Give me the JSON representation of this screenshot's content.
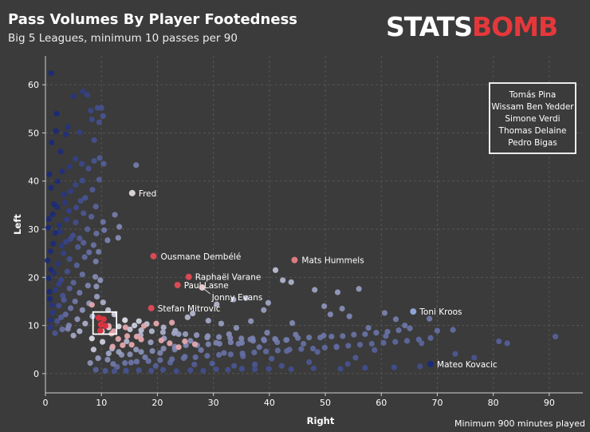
{
  "header": {
    "title": "Pass Volumes By Player Footedness",
    "subtitle": "Big 5 Leagues, minimum 10 passes per 90"
  },
  "logo": {
    "part1": "STATS",
    "part2": "BOMB"
  },
  "footnote": "Minimum 900 minutes played",
  "colors": {
    "background": "#3b3b3b",
    "high_left": "#1b2a78",
    "mid": "#e8e8f0",
    "high_right_balance": "#d9343f"
  },
  "chart_data": {
    "type": "scatter",
    "xlabel": "Right",
    "ylabel": "Left",
    "xlim": [
      0,
      96
    ],
    "ylim": [
      -4,
      66
    ],
    "xticks": [
      0,
      10,
      20,
      30,
      40,
      50,
      60,
      70,
      80,
      90
    ],
    "yticks": [
      0,
      10,
      20,
      30,
      40,
      50,
      60
    ],
    "grid": true,
    "highlight_box": {
      "x": [
        8.5,
        12.7
      ],
      "y": [
        8.2,
        12.8
      ]
    },
    "highlight_names": [
      "Tomás Pina",
      "Wissam Ben Yedder",
      "Simone Verdi",
      "Thomas Delaine",
      "Pedro Bigas"
    ],
    "labeled_points": [
      {
        "name": "Fred",
        "x": 15.5,
        "y": 37.5,
        "color": "#d9d2d4"
      },
      {
        "name": "Ousmane Dembélé",
        "x": 19.3,
        "y": 24.4,
        "color": "#d94a55"
      },
      {
        "name": "Raphaël Varane",
        "x": 25.6,
        "y": 20.1,
        "color": "#d94a55"
      },
      {
        "name": "Paul Lasne",
        "x": 23.6,
        "y": 18.4,
        "color": "#d94a55"
      },
      {
        "name": "Jonny Evans",
        "x": 28.0,
        "y": 17.9,
        "color": "#e7c9cc"
      },
      {
        "name": "Stefan Mitrovic",
        "x": 18.9,
        "y": 13.6,
        "color": "#d94a55"
      },
      {
        "name": "Mats Hummels",
        "x": 44.5,
        "y": 23.6,
        "color": "#e07a82"
      },
      {
        "name": "Toni Kroos",
        "x": 65.7,
        "y": 12.9,
        "color": "#8fa3d6"
      },
      {
        "name": "Mateo Kovacic",
        "x": 68.8,
        "y": 2.0,
        "color": "#1b2a78"
      }
    ],
    "points": [
      [
        1.0,
        62.4
      ],
      [
        6.7,
        58.6
      ],
      [
        7.5,
        57.9
      ],
      [
        5.0,
        57.6
      ],
      [
        10.0,
        55.2
      ],
      [
        9.3,
        55.2
      ],
      [
        8.1,
        54.6
      ],
      [
        2.0,
        54.0
      ],
      [
        10.3,
        53.5
      ],
      [
        8.3,
        52.8
      ],
      [
        9.6,
        52.2
      ],
      [
        4.0,
        51.2
      ],
      [
        6.1,
        50.1
      ],
      [
        1.9,
        50.4
      ],
      [
        3.7,
        49.7
      ],
      [
        1.1,
        48.0
      ],
      [
        8.7,
        48.5
      ],
      [
        2.7,
        46.1
      ],
      [
        5.4,
        44.6
      ],
      [
        9.7,
        44.8
      ],
      [
        8.7,
        44.2
      ],
      [
        6.5,
        43.6
      ],
      [
        10.4,
        43.6
      ],
      [
        4.3,
        43.0
      ],
      [
        7.7,
        42.6
      ],
      [
        3.0,
        42.0
      ],
      [
        0.7,
        41.4
      ],
      [
        9.6,
        40.3
      ],
      [
        6.6,
        40.1
      ],
      [
        2.2,
        39.9
      ],
      [
        5.4,
        39.2
      ],
      [
        1.0,
        38.6
      ],
      [
        8.4,
        38.2
      ],
      [
        4.5,
        37.9
      ],
      [
        3.3,
        37.2
      ],
      [
        7.1,
        36.5
      ],
      [
        6.3,
        35.9
      ],
      [
        9.0,
        34.7
      ],
      [
        2.1,
        34.6
      ],
      [
        4.2,
        33.8
      ],
      [
        6.8,
        33.3
      ],
      [
        1.3,
        33.1
      ],
      [
        8.2,
        32.6
      ],
      [
        3.8,
        32.0
      ],
      [
        5.4,
        31.4
      ],
      [
        10.3,
        31.5
      ],
      [
        0.5,
        30.3
      ],
      [
        7.5,
        30.0
      ],
      [
        2.6,
        29.5
      ],
      [
        9.1,
        29.1
      ],
      [
        4.9,
        28.7
      ],
      [
        6.1,
        28.1
      ],
      [
        3.7,
        27.4
      ],
      [
        1.4,
        27.0
      ],
      [
        8.6,
        26.7
      ],
      [
        5.8,
        26.3
      ],
      [
        0.9,
        25.4
      ],
      [
        3.2,
        25.0
      ],
      [
        7.0,
        24.2
      ],
      [
        4.3,
        23.8
      ],
      [
        9.0,
        23.3
      ],
      [
        2.2,
        22.8
      ],
      [
        5.6,
        22.5
      ],
      [
        1.0,
        21.6
      ],
      [
        3.9,
        21.2
      ],
      [
        6.6,
        20.6
      ],
      [
        8.9,
        20.1
      ],
      [
        0.6,
        19.8
      ],
      [
        2.8,
        19.4
      ],
      [
        5.0,
        18.9
      ],
      [
        7.6,
        18.3
      ],
      [
        4.3,
        17.7
      ],
      [
        1.8,
        17.4
      ],
      [
        6.1,
        16.8
      ],
      [
        3.1,
        16.2
      ],
      [
        9.2,
        16.0
      ],
      [
        0.8,
        15.5
      ],
      [
        5.3,
        15.0
      ],
      [
        7.8,
        14.6
      ],
      [
        2.4,
        14.1
      ],
      [
        4.5,
        13.6
      ],
      [
        6.6,
        13.2
      ],
      [
        1.3,
        12.7
      ],
      [
        3.6,
        12.3
      ],
      [
        8.4,
        11.9
      ],
      [
        5.7,
        11.3
      ],
      [
        2.1,
        10.9
      ],
      [
        7.1,
        10.4
      ],
      [
        4.2,
        10.0
      ],
      [
        0.9,
        9.6
      ],
      [
        3.0,
        9.2
      ],
      [
        6.1,
        8.8
      ],
      [
        1.7,
        8.4
      ],
      [
        5.0,
        7.9
      ],
      [
        0.6,
        32.1
      ],
      [
        1.8,
        29.2
      ],
      [
        2.9,
        26.6
      ],
      [
        0.4,
        23.5
      ],
      [
        1.5,
        20.9
      ],
      [
        2.4,
        18.6
      ],
      [
        0.7,
        17.0
      ],
      [
        3.3,
        15.3
      ],
      [
        1.2,
        14.2
      ],
      [
        2.8,
        11.7
      ],
      [
        0.9,
        11.1
      ],
      [
        4.0,
        9.3
      ],
      [
        1.5,
        35.2
      ],
      [
        3.5,
        35.5
      ],
      [
        5.5,
        34.5
      ],
      [
        2.5,
        30.8
      ],
      [
        4.5,
        28.0
      ],
      [
        6.8,
        27.2
      ],
      [
        7.8,
        25.2
      ],
      [
        9.5,
        25.3
      ],
      [
        10.5,
        29.8
      ],
      [
        11.1,
        27.7
      ],
      [
        12.4,
        33.0
      ],
      [
        13.0,
        28.2
      ],
      [
        16.2,
        43.3
      ],
      [
        13.2,
        30.5
      ],
      [
        10.3,
        14.8
      ],
      [
        11.2,
        13.2
      ],
      [
        12.3,
        12.3
      ],
      [
        9.1,
        18.1
      ],
      [
        9.8,
        19.4
      ],
      [
        14.2,
        11.1
      ],
      [
        16.7,
        10.9
      ],
      [
        15.9,
        10.0
      ],
      [
        18.1,
        10.3
      ],
      [
        21.1,
        9.6
      ],
      [
        23.2,
        8.9
      ],
      [
        25.4,
        11.7
      ],
      [
        26.3,
        12.5
      ],
      [
        29.1,
        11.0
      ],
      [
        31.4,
        10.4
      ],
      [
        34.1,
        9.5
      ],
      [
        36.7,
        10.9
      ],
      [
        30.6,
        14.4
      ],
      [
        33.6,
        15.4
      ],
      [
        35.8,
        15.7
      ],
      [
        39.0,
        13.2
      ],
      [
        39.8,
        14.7
      ],
      [
        41.1,
        21.5
      ],
      [
        42.4,
        19.4
      ],
      [
        43.9,
        19.0
      ],
      [
        44.1,
        10.5
      ],
      [
        48.1,
        17.4
      ],
      [
        49.8,
        14.0
      ],
      [
        50.9,
        12.3
      ],
      [
        52.2,
        16.9
      ],
      [
        53.0,
        13.5
      ],
      [
        56.0,
        17.6
      ],
      [
        54.3,
        11.9
      ],
      [
        57.7,
        9.5
      ],
      [
        60.6,
        12.6
      ],
      [
        62.6,
        11.3
      ],
      [
        64.2,
        10.0
      ],
      [
        68.6,
        11.4
      ],
      [
        70.0,
        8.9
      ],
      [
        72.8,
        9.1
      ],
      [
        81.0,
        6.7
      ],
      [
        82.5,
        6.3
      ],
      [
        91.1,
        7.7
      ],
      [
        76.6,
        3.3
      ],
      [
        73.2,
        4.1
      ],
      [
        67.2,
        6.3
      ],
      [
        60.8,
        7.8
      ],
      [
        58.8,
        4.9
      ],
      [
        55.4,
        3.3
      ],
      [
        54.0,
        2.0
      ],
      [
        52.0,
        5.5
      ],
      [
        49.7,
        7.9
      ],
      [
        48.6,
        4.5
      ],
      [
        47.1,
        2.4
      ],
      [
        46.1,
        6.2
      ],
      [
        44.7,
        8.1
      ],
      [
        43.1,
        4.7
      ],
      [
        42.2,
        1.6
      ],
      [
        41.4,
        6.5
      ],
      [
        40.4,
        3.1
      ],
      [
        39.6,
        8.5
      ],
      [
        38.2,
        5.5
      ],
      [
        37.4,
        1.9
      ],
      [
        36.6,
        7.1
      ],
      [
        35.3,
        3.6
      ],
      [
        34.5,
        6.2
      ],
      [
        33.7,
        1.6
      ],
      [
        32.8,
        8.2
      ],
      [
        31.9,
        4.3
      ],
      [
        30.5,
        6.4
      ],
      [
        29.8,
        2.1
      ],
      [
        28.9,
        7.5
      ],
      [
        27.8,
        4.9
      ],
      [
        26.6,
        1.9
      ],
      [
        25.9,
        6.8
      ],
      [
        24.9,
        3.5
      ],
      [
        23.8,
        8.2
      ],
      [
        23.1,
        5.0
      ],
      [
        22.3,
        2.3
      ],
      [
        21.2,
        7.3
      ],
      [
        20.5,
        4.3
      ],
      [
        19.7,
        1.6
      ],
      [
        18.8,
        6.5
      ],
      [
        17.8,
        3.4
      ],
      [
        17.0,
        8.0
      ],
      [
        16.2,
        5.0
      ],
      [
        15.3,
        2.3
      ],
      [
        14.5,
        6.7
      ],
      [
        13.6,
        3.9
      ],
      [
        12.8,
        1.4
      ],
      [
        11.9,
        5.2
      ],
      [
        11.1,
        2.9
      ],
      [
        10.2,
        6.6
      ],
      [
        9.4,
        3.2
      ],
      [
        8.6,
        5.0
      ],
      [
        8.0,
        2.2
      ],
      [
        8.3,
        7.3
      ],
      [
        9.0,
        0.8
      ],
      [
        10.7,
        0.6
      ],
      [
        12.3,
        0.5
      ],
      [
        14.4,
        0.6
      ],
      [
        16.7,
        0.7
      ],
      [
        18.9,
        0.6
      ],
      [
        21.0,
        0.8
      ],
      [
        23.4,
        0.5
      ],
      [
        25.9,
        0.7
      ],
      [
        28.2,
        0.6
      ],
      [
        30.5,
        0.9
      ],
      [
        32.6,
        0.8
      ],
      [
        35.1,
        1.0
      ],
      [
        37.4,
        0.9
      ],
      [
        39.9,
        1.0
      ],
      [
        43.9,
        0.9
      ],
      [
        47.9,
        1.1
      ],
      [
        52.7,
        1.0
      ],
      [
        57.1,
        1.2
      ],
      [
        62.3,
        1.3
      ],
      [
        66.9,
        1.5
      ],
      [
        11.3,
        4.2
      ],
      [
        13.1,
        4.5
      ],
      [
        15.1,
        4.0
      ],
      [
        17.1,
        4.5
      ],
      [
        19.1,
        4.7
      ],
      [
        21.1,
        5.2
      ],
      [
        23.1,
        5.6
      ],
      [
        25.1,
        5.9
      ],
      [
        27.1,
        5.9
      ],
      [
        29.1,
        6.1
      ],
      [
        31.1,
        6.2
      ],
      [
        33.1,
        6.5
      ],
      [
        35.1,
        6.4
      ],
      [
        37.1,
        6.8
      ],
      [
        39.1,
        6.9
      ],
      [
        41.1,
        7.1
      ],
      [
        43.1,
        7.0
      ],
      [
        45.1,
        7.4
      ],
      [
        47.1,
        7.5
      ],
      [
        49.1,
        7.5
      ],
      [
        51.1,
        7.7
      ],
      [
        53.1,
        7.8
      ],
      [
        55.1,
        8.1
      ],
      [
        57.1,
        8.2
      ],
      [
        59.1,
        8.5
      ],
      [
        61.1,
        8.7
      ],
      [
        63.1,
        9.0
      ],
      [
        65.1,
        9.4
      ],
      [
        10.1,
        8.8
      ],
      [
        11.3,
        9.6
      ],
      [
        13.1,
        9.8
      ],
      [
        15.1,
        9.2
      ],
      [
        17.1,
        9.0
      ],
      [
        19.0,
        8.8
      ],
      [
        21.0,
        8.6
      ],
      [
        23.0,
        8.4
      ],
      [
        25.0,
        8.2
      ],
      [
        27.0,
        8.0
      ],
      [
        29.0,
        7.8
      ],
      [
        31.0,
        7.6
      ],
      [
        33.0,
        7.4
      ],
      [
        35.0,
        7.3
      ],
      [
        37.0,
        7.3
      ],
      [
        39.0,
        7.1
      ],
      [
        41.0,
        7.2
      ],
      [
        43.0,
        7.0
      ],
      [
        12.1,
        2.0
      ],
      [
        14.2,
        2.2
      ],
      [
        16.3,
        2.5
      ],
      [
        18.4,
        2.6
      ],
      [
        20.5,
        2.8
      ],
      [
        22.6,
        3.0
      ],
      [
        24.7,
        3.2
      ],
      [
        26.8,
        3.4
      ],
      [
        28.9,
        3.7
      ],
      [
        31.0,
        3.9
      ],
      [
        33.1,
        4.0
      ],
      [
        35.2,
        4.2
      ],
      [
        37.3,
        4.4
      ],
      [
        39.4,
        4.6
      ],
      [
        41.5,
        4.8
      ],
      [
        43.6,
        5.0
      ],
      [
        45.7,
        5.1
      ],
      [
        47.8,
        5.2
      ],
      [
        49.9,
        5.4
      ],
      [
        52.0,
        5.6
      ],
      [
        54.1,
        5.8
      ],
      [
        56.2,
        6.0
      ],
      [
        58.3,
        6.2
      ],
      [
        60.4,
        6.4
      ],
      [
        62.5,
        6.6
      ],
      [
        64.6,
        6.8
      ],
      [
        66.7,
        7.1
      ],
      [
        68.8,
        7.4
      ]
    ],
    "red_points": [
      [
        9.9,
        10.2
      ],
      [
        10.4,
        11.3
      ],
      [
        9.5,
        11.6
      ],
      [
        10.7,
        9.9
      ],
      [
        9.8,
        8.9
      ],
      [
        8.3,
        14.3
      ],
      [
        11.3,
        9.9
      ],
      [
        11.8,
        8.3
      ],
      [
        13.0,
        7.2
      ],
      [
        12.0,
        5.6
      ],
      [
        13.8,
        5.9
      ],
      [
        14.6,
        7.8
      ],
      [
        15.4,
        6.0
      ],
      [
        16.3,
        7.7
      ],
      [
        17.1,
        7.1
      ],
      [
        20.7,
        6.9
      ],
      [
        22.2,
        6.3
      ],
      [
        23.8,
        5.5
      ],
      [
        24.9,
        6.7
      ],
      [
        26.7,
        6.1
      ],
      [
        12.2,
        8.8
      ],
      [
        14.3,
        9.6
      ],
      [
        17.6,
        9.9
      ],
      [
        19.8,
        10.4
      ],
      [
        22.6,
        10.6
      ]
    ]
  }
}
